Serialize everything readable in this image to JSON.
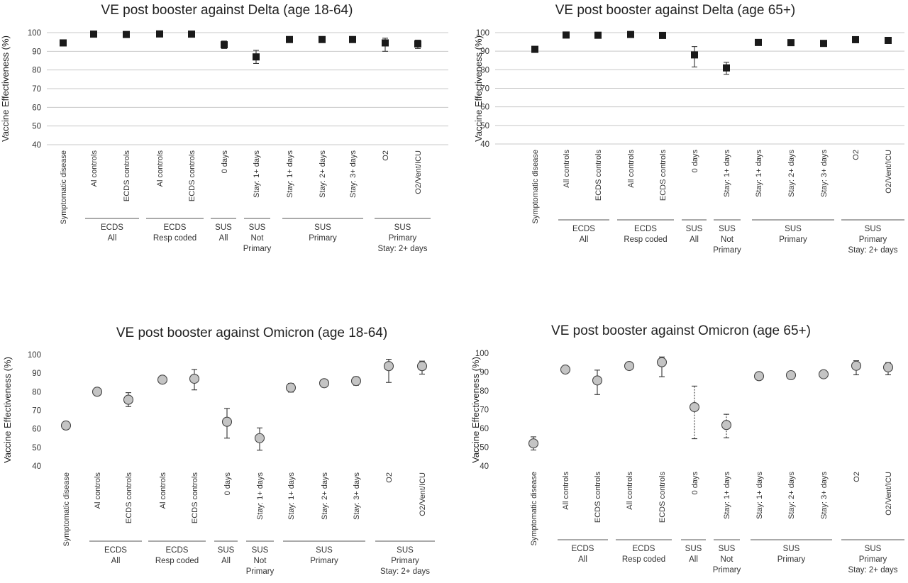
{
  "ylabel_text": {
    "vaccine_effectiveness_pct": "Vaccine Effectiveness (%)"
  },
  "chart_data": [
    {
      "type": "scatter",
      "marker": "square",
      "marker_color": "#1a1a1a",
      "title": "VE post booster against Delta (age 18-64)",
      "ylabel": "Vaccine Effectiveness (%)",
      "ylim": [
        40,
        100
      ],
      "yticks": [
        40,
        50,
        60,
        70,
        80,
        90,
        100
      ],
      "grid": true,
      "categories": [
        "Symptomatic disease",
        "Al controls",
        "ECDS controls",
        "Al controls",
        "ECDS controls",
        "0 days",
        "Stay: 1+ days",
        "Stay: 1+ days",
        "Stay: 2+ days",
        "Stay: 3+ days",
        "O2",
        "O2/Vent/ICU"
      ],
      "values": [
        94.5,
        99.2,
        99.0,
        99.3,
        99.2,
        93.5,
        87.0,
        96.3,
        96.3,
        96.3,
        94.5,
        94.0
      ],
      "ci_low": [
        93.5,
        98.8,
        98.5,
        98.8,
        98.8,
        91.5,
        83.5,
        95.3,
        95.3,
        95.3,
        90.0,
        91.5
      ],
      "ci_high": [
        95.5,
        99.5,
        99.4,
        99.6,
        99.5,
        95.5,
        90.5,
        97.3,
        97.3,
        97.3,
        97.0,
        96.0
      ],
      "groups": [
        {
          "label": [
            "ECDS",
            "All"
          ],
          "start": 1,
          "end": 2
        },
        {
          "label": [
            "ECDS",
            "Resp coded"
          ],
          "start": 3,
          "end": 4
        },
        {
          "label": [
            "SUS",
            "All"
          ],
          "start": 5,
          "end": 5
        },
        {
          "label": [
            "SUS",
            "Not",
            "Primary"
          ],
          "start": 6,
          "end": 6
        },
        {
          "label": [
            "SUS",
            "Primary"
          ],
          "start": 7,
          "end": 9
        },
        {
          "label": [
            "SUS",
            "Primary",
            "Stay: 2+ days"
          ],
          "start": 10,
          "end": 11
        }
      ]
    },
    {
      "type": "scatter",
      "marker": "square",
      "marker_color": "#1a1a1a",
      "title": "VE post booster against Delta (age 65+)",
      "ylabel": "Vaccine Effectiveness (%)",
      "ylim": [
        40,
        100
      ],
      "yticks": [
        40,
        50,
        60,
        70,
        80,
        90,
        100
      ],
      "grid": true,
      "categories": [
        "Symptomatic disease",
        "All controls",
        "ECDS controls",
        "All controls",
        "ECDS controls",
        "0 days",
        "Stay: 1+ days",
        "Stay: 1+ days",
        "Stay: 2+ days",
        "Stay: 3+ days",
        "O2",
        "O2/Vent/ICU"
      ],
      "values": [
        91.0,
        98.7,
        98.6,
        99.0,
        98.5,
        88.0,
        81.0,
        94.7,
        94.6,
        94.2,
        96.2,
        95.8
      ],
      "ci_low": [
        90.0,
        98.2,
        98.0,
        98.6,
        98.0,
        81.5,
        77.5,
        93.7,
        93.6,
        93.2,
        95.0,
        94.5
      ],
      "ci_high": [
        92.0,
        99.2,
        99.1,
        99.4,
        99.0,
        92.5,
        84.0,
        95.7,
        95.6,
        95.2,
        97.2,
        96.8
      ],
      "groups": [
        {
          "label": [
            "ECDS",
            "All"
          ],
          "start": 1,
          "end": 2
        },
        {
          "label": [
            "ECDS",
            "Resp coded"
          ],
          "start": 3,
          "end": 4
        },
        {
          "label": [
            "SUS",
            "All"
          ],
          "start": 5,
          "end": 5
        },
        {
          "label": [
            "SUS",
            "Not",
            "Primary"
          ],
          "start": 6,
          "end": 6
        },
        {
          "label": [
            "SUS",
            "Primary"
          ],
          "start": 7,
          "end": 9
        },
        {
          "label": [
            "SUS",
            "Primary",
            "Stay: 2+ days"
          ],
          "start": 10,
          "end": 11
        }
      ]
    },
    {
      "type": "scatter",
      "marker": "circle",
      "marker_color": "#c4c4c4",
      "title": "VE post booster against Omicron (age 18-64)",
      "ylabel": "Vaccine Effectiveness (%)",
      "ylim": [
        40,
        100
      ],
      "yticks": [
        40,
        50,
        60,
        70,
        80,
        90,
        100
      ],
      "grid": false,
      "categories": [
        "Symptomatic disease",
        "Al controls",
        "ECDS controls",
        "Al controls",
        "ECDS controls",
        "0 days",
        "Stay: 1+ days",
        "Stay: 1+ days",
        "Stay: 2+ days",
        "Stay: 3+ days",
        "O2",
        "O2/Vent/ICU"
      ],
      "values": [
        61.8,
        80.0,
        75.7,
        86.5,
        87.0,
        63.8,
        55.0,
        82.2,
        84.6,
        85.8,
        93.8,
        93.8
      ],
      "ci_low": [
        60.8,
        78.8,
        72.0,
        84.5,
        81.0,
        55.0,
        48.5,
        79.8,
        82.5,
        83.5,
        85.0,
        89.5
      ],
      "ci_high": [
        62.8,
        81.2,
        79.5,
        88.5,
        92.0,
        71.0,
        60.5,
        84.5,
        86.5,
        88.0,
        97.5,
        96.5
      ],
      "groups": [
        {
          "label": [
            "ECDS",
            "All"
          ],
          "start": 1,
          "end": 2
        },
        {
          "label": [
            "ECDS",
            "Resp coded"
          ],
          "start": 3,
          "end": 4
        },
        {
          "label": [
            "SUS",
            "All"
          ],
          "start": 5,
          "end": 5
        },
        {
          "label": [
            "SUS",
            "Not",
            "Primary"
          ],
          "start": 6,
          "end": 6
        },
        {
          "label": [
            "SUS",
            "Primary"
          ],
          "start": 7,
          "end": 9
        },
        {
          "label": [
            "SUS",
            "Primary",
            "Stay: 2+ days"
          ],
          "start": 10,
          "end": 11
        }
      ]
    },
    {
      "type": "scatter",
      "marker": "circle",
      "marker_color": "#c4c4c4",
      "title": "VE post booster against Omicron (age 65+)",
      "ylabel": "Vaccine Effectiveness (%)",
      "ylim": [
        40,
        100
      ],
      "yticks": [
        40,
        50,
        60,
        70,
        80,
        90,
        100
      ],
      "grid": false,
      "categories": [
        "Symptomatic disease",
        "All controls",
        "ECDS controls",
        "All controls",
        "ECDS controls",
        "0 days",
        "Stay: 1+ days",
        "Stay: 1+ days",
        "Stay: 2+ days",
        "Stay: 3+ days",
        "O2",
        "O2/Vent/ICU"
      ],
      "values": [
        52.0,
        91.3,
        85.5,
        93.2,
        95.2,
        71.3,
        61.8,
        87.8,
        88.3,
        88.8,
        93.3,
        92.5
      ],
      "ci_low": [
        48.5,
        89.8,
        78.0,
        91.2,
        87.5,
        54.5,
        55.0,
        86.8,
        87.0,
        87.5,
        88.5,
        88.5
      ],
      "ci_high": [
        55.5,
        92.8,
        91.0,
        94.8,
        98.0,
        82.5,
        67.5,
        88.8,
        89.5,
        90.0,
        96.0,
        95.0
      ],
      "groups": [
        {
          "label": [
            "ECDS",
            "All"
          ],
          "start": 1,
          "end": 2
        },
        {
          "label": [
            "ECDS",
            "Resp coded"
          ],
          "start": 3,
          "end": 4
        },
        {
          "label": [
            "SUS",
            "All"
          ],
          "start": 5,
          "end": 5
        },
        {
          "label": [
            "SUS",
            "Not",
            "Primary"
          ],
          "start": 6,
          "end": 6
        },
        {
          "label": [
            "SUS",
            "Primary"
          ],
          "start": 7,
          "end": 9
        },
        {
          "label": [
            "SUS",
            "Primary",
            "Stay: 2+ days"
          ],
          "start": 10,
          "end": 11
        }
      ]
    }
  ]
}
